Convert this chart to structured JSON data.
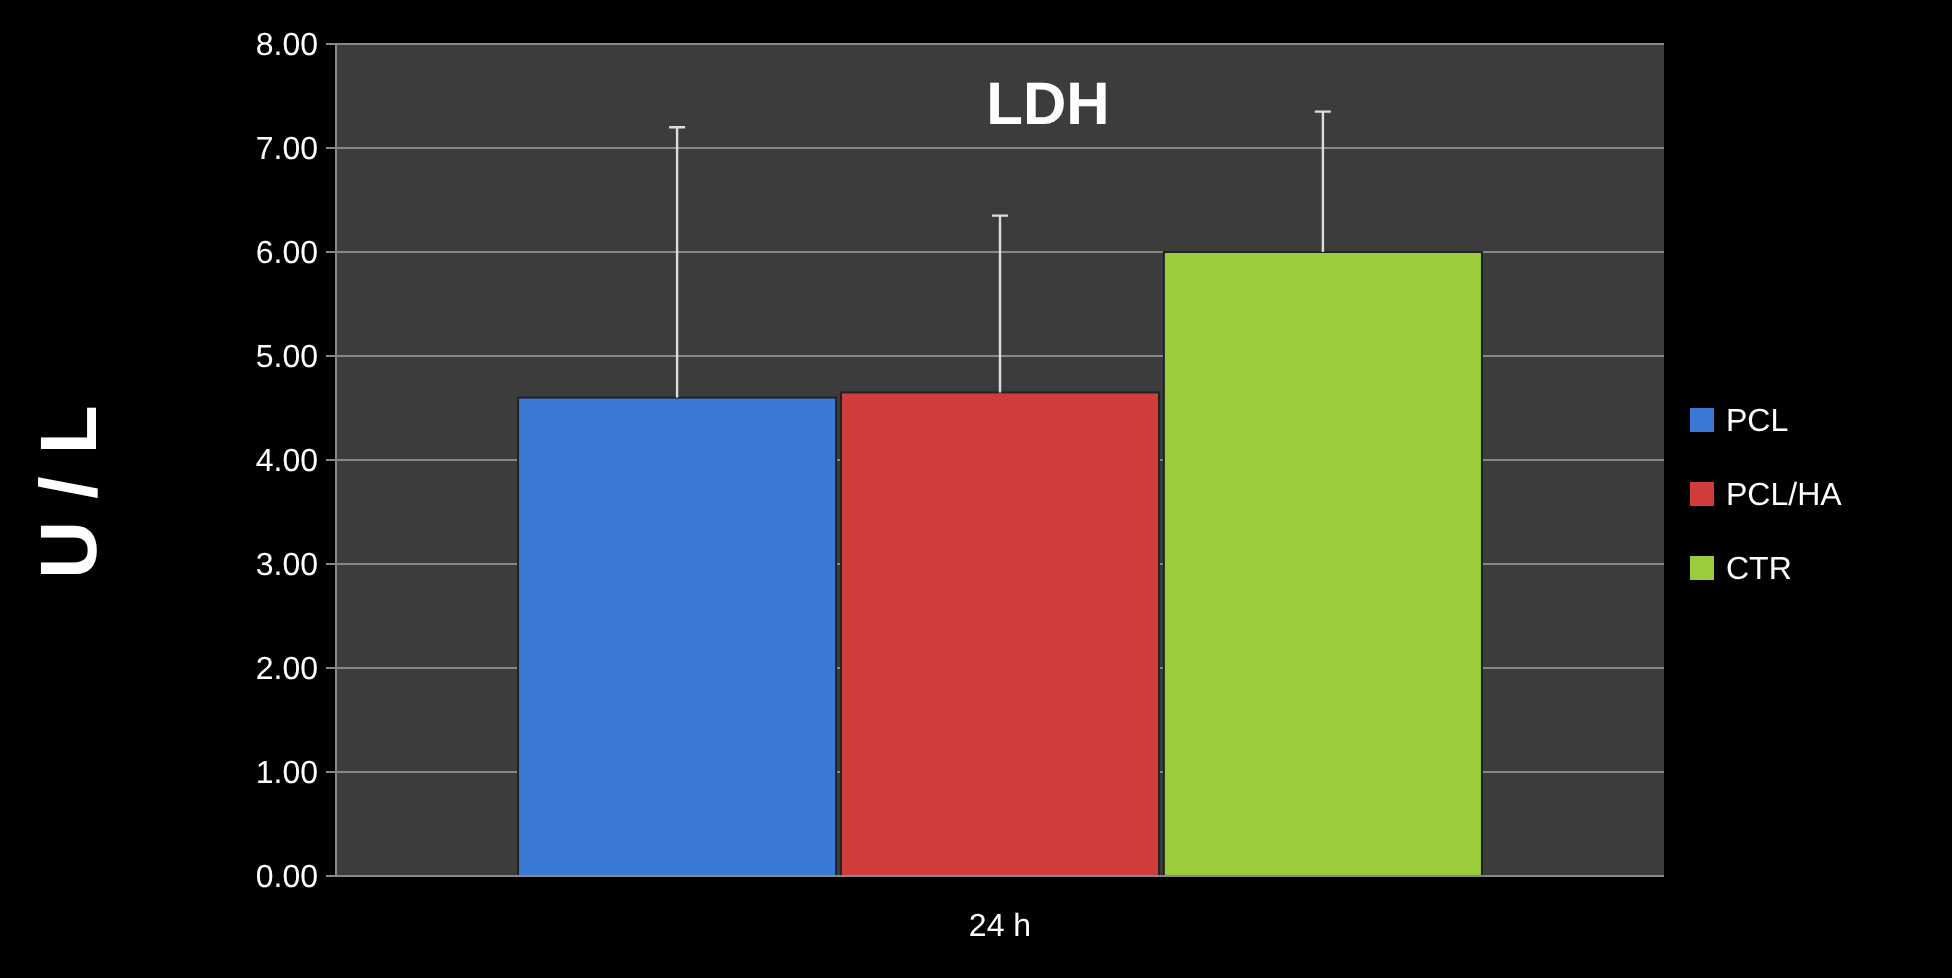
{
  "chart_data": {
    "type": "bar",
    "title": "LDH",
    "ylabel": "U / L",
    "categories": [
      "24 h"
    ],
    "series": [
      {
        "name": "PCL",
        "color": "#3a7ad6",
        "values": [
          4.6
        ],
        "errors": [
          [
            4.6,
            7.2
          ]
        ]
      },
      {
        "name": "PCL/HA",
        "color": "#d13c3c",
        "values": [
          4.65
        ],
        "errors": [
          [
            4.65,
            6.35
          ]
        ]
      },
      {
        "name": "CTR",
        "color": "#9ccc3c",
        "values": [
          6.0
        ],
        "errors": [
          [
            6.0,
            7.35
          ]
        ]
      }
    ],
    "ylim": [
      0,
      8
    ],
    "yticks": [
      {
        "value": 0,
        "label": "0.00"
      },
      {
        "value": 1,
        "label": "1.00"
      },
      {
        "value": 2,
        "label": "2.00"
      },
      {
        "value": 3,
        "label": "3.00"
      },
      {
        "value": 4,
        "label": "4.00"
      },
      {
        "value": 5,
        "label": "5.00"
      },
      {
        "value": 6,
        "label": "6.00"
      },
      {
        "value": 7,
        "label": "7.00"
      },
      {
        "value": 8,
        "label": "8.00"
      }
    ],
    "grid": "y",
    "legend": "right"
  }
}
